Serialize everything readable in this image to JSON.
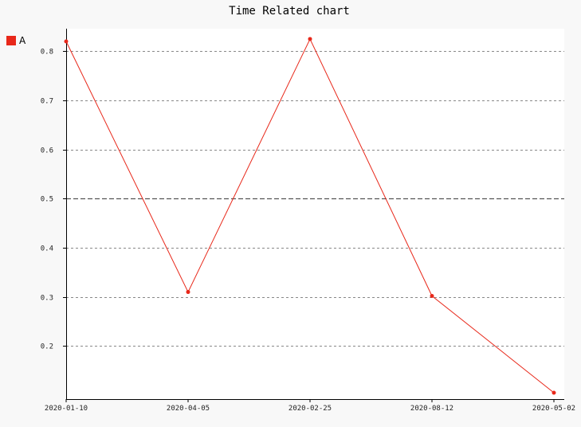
{
  "chart_data": {
    "type": "line",
    "title": "Time Related chart",
    "xlabel": "",
    "ylabel": "",
    "x": [
      "2020-01-10",
      "2020-04-05",
      "2020-02-25",
      "2020-08-12",
      "2020-05-02"
    ],
    "series": [
      {
        "name": "A",
        "color": "#e8281a",
        "values": [
          0.82,
          0.31,
          0.825,
          0.302,
          0.105
        ]
      }
    ],
    "yticks": [
      0.2,
      0.3,
      0.4,
      0.5,
      0.6,
      0.7,
      0.8
    ],
    "ylim": [
      0.092,
      0.846
    ],
    "grid": true,
    "legend": "top-left"
  }
}
